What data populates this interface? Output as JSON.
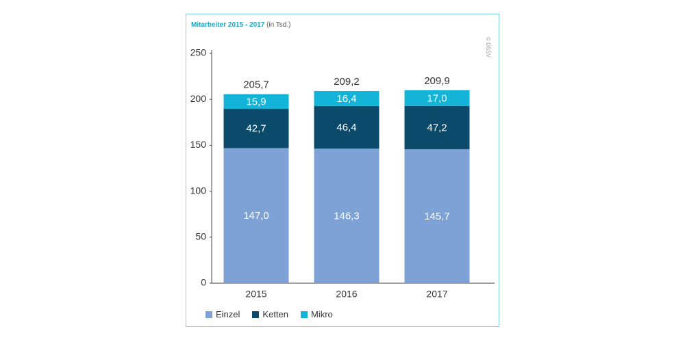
{
  "chart_data": {
    "type": "bar",
    "stacked": true,
    "title": "Mitarbeiter 2015 - 2017",
    "title_unit": "(in Tsd.)",
    "credit": "© DSSV",
    "categories": [
      "2015",
      "2016",
      "2017"
    ],
    "series": [
      {
        "name": "Einzel",
        "color": "#7ea2d6",
        "values": [
          147.0,
          146.3,
          145.7
        ],
        "labels": [
          "147,0",
          "146,3",
          "145,7"
        ]
      },
      {
        "name": "Ketten",
        "color": "#0b4a6b",
        "values": [
          42.7,
          46.4,
          47.2
        ],
        "labels": [
          "42,7",
          "46,4",
          "47,2"
        ]
      },
      {
        "name": "Mikro",
        "color": "#14b4d8",
        "values": [
          15.9,
          16.4,
          17.0
        ],
        "labels": [
          "15,9",
          "16,4",
          "17,0"
        ]
      }
    ],
    "totals": [
      205.7,
      209.2,
      209.9
    ],
    "total_labels": [
      "205,7",
      "209,2",
      "209,9"
    ],
    "ylim": [
      0,
      250
    ],
    "yticks": [
      0,
      50,
      100,
      150,
      200,
      250
    ],
    "grid": false,
    "legend_position": "bottom-left"
  }
}
